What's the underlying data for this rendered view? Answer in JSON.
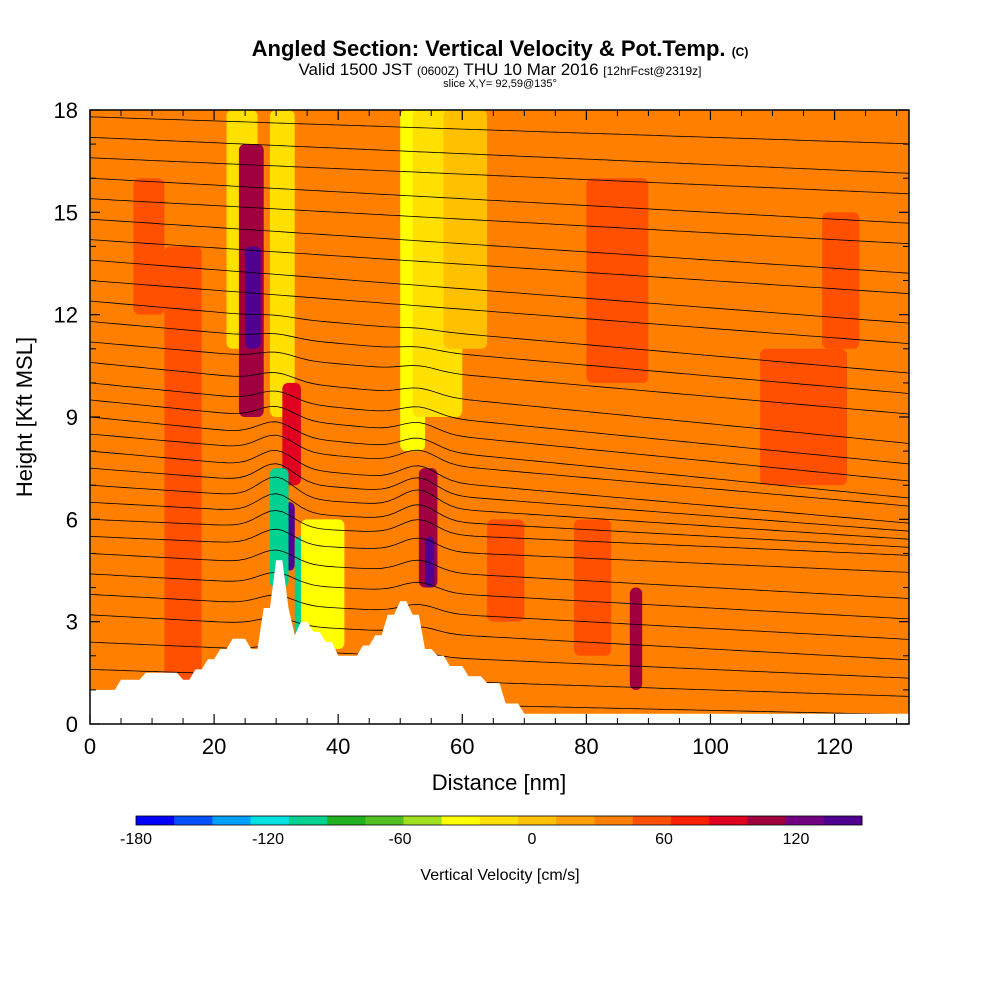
{
  "header": {
    "title_main": "Angled Section: Vertical Velocity & Pot.Temp.",
    "title_tag": "(C)",
    "valid_prefix": "Valid 1500 JST",
    "valid_utc": "(0600Z)",
    "valid_date": "THU 10 Mar 2016",
    "forecast_info": "[12hrFcst@2319z]",
    "slice_info": "slice X,Y= 92,59@135°"
  },
  "chart_data": {
    "type": "heatmap",
    "xlabel": "Distance [nm]",
    "ylabel": "Height [Kft MSL]",
    "xlim": [
      0,
      132
    ],
    "ylim": [
      0,
      18
    ],
    "x_ticks": [
      0,
      20,
      40,
      60,
      80,
      100,
      120
    ],
    "y_ticks": [
      0,
      3,
      6,
      9,
      12,
      15,
      18
    ],
    "colorbar": {
      "label": "Vertical Velocity [cm/s]",
      "min": -180,
      "max": 150,
      "step": 15,
      "tick_values": [
        -180,
        -120,
        -60,
        0,
        60,
        120
      ],
      "colors": [
        "#0000ff",
        "#0050ff",
        "#00a0ff",
        "#00e0e0",
        "#00d090",
        "#20b020",
        "#50c020",
        "#a0e020",
        "#ffff00",
        "#ffe000",
        "#ffc000",
        "#ffa000",
        "#ff8000",
        "#ff5000",
        "#ff2000",
        "#e00020",
        "#a00040",
        "#700080",
        "#500090"
      ]
    },
    "terrain_profile": [
      [
        0,
        1.0
      ],
      [
        1,
        1.0
      ],
      [
        2,
        1.0
      ],
      [
        3,
        1.0
      ],
      [
        4,
        1.0
      ],
      [
        5,
        1.3
      ],
      [
        6,
        1.3
      ],
      [
        7,
        1.3
      ],
      [
        8,
        1.3
      ],
      [
        9,
        1.5
      ],
      [
        10,
        1.5
      ],
      [
        11,
        1.5
      ],
      [
        12,
        1.5
      ],
      [
        13,
        1.5
      ],
      [
        14,
        1.5
      ],
      [
        15,
        1.3
      ],
      [
        16,
        1.3
      ],
      [
        17,
        1.6
      ],
      [
        18,
        1.6
      ],
      [
        19,
        1.9
      ],
      [
        20,
        1.9
      ],
      [
        21,
        2.2
      ],
      [
        22,
        2.2
      ],
      [
        23,
        2.5
      ],
      [
        24,
        2.5
      ],
      [
        25,
        2.5
      ],
      [
        26,
        2.2
      ],
      [
        27,
        2.2
      ],
      [
        28,
        3.4
      ],
      [
        29,
        3.4
      ],
      [
        30,
        4.8
      ],
      [
        31,
        4.8
      ],
      [
        32,
        3.4
      ],
      [
        33,
        2.6
      ],
      [
        34,
        3.0
      ],
      [
        35,
        3.0
      ],
      [
        36,
        2.7
      ],
      [
        37,
        2.7
      ],
      [
        38,
        2.4
      ],
      [
        39,
        2.4
      ],
      [
        40,
        2.0
      ],
      [
        41,
        2.0
      ],
      [
        42,
        2.0
      ],
      [
        43,
        2.0
      ],
      [
        44,
        2.3
      ],
      [
        45,
        2.3
      ],
      [
        46,
        2.6
      ],
      [
        47,
        2.6
      ],
      [
        48,
        3.2
      ],
      [
        49,
        3.2
      ],
      [
        50,
        3.6
      ],
      [
        51,
        3.6
      ],
      [
        52,
        3.2
      ],
      [
        53,
        3.2
      ],
      [
        54,
        2.2
      ],
      [
        55,
        2.2
      ],
      [
        56,
        2.0
      ],
      [
        57,
        2.0
      ],
      [
        58,
        1.7
      ],
      [
        59,
        1.7
      ],
      [
        60,
        1.7
      ],
      [
        61,
        1.4
      ],
      [
        62,
        1.4
      ],
      [
        63,
        1.4
      ],
      [
        64,
        1.2
      ],
      [
        65,
        1.2
      ],
      [
        66,
        1.2
      ],
      [
        67,
        0.6
      ],
      [
        68,
        0.6
      ],
      [
        69,
        0.6
      ],
      [
        70,
        0.3
      ],
      [
        132,
        0.3
      ]
    ],
    "cells": [
      {
        "x": [
          22,
          27
        ],
        "y": [
          11,
          18
        ],
        "w": -45
      },
      {
        "x": [
          24,
          28
        ],
        "y": [
          9,
          17
        ],
        "w": 60
      },
      {
        "x": [
          25,
          27.5
        ],
        "y": [
          11,
          14
        ],
        "w": 110
      },
      {
        "x": [
          29,
          33
        ],
        "y": [
          9,
          18
        ],
        "w": -40
      },
      {
        "x": [
          31,
          34
        ],
        "y": [
          7,
          10
        ],
        "w": 50
      },
      {
        "x": [
          31.5,
          33
        ],
        "y": [
          4.5,
          6.5
        ],
        "w": 110
      },
      {
        "x": [
          29,
          32
        ],
        "y": [
          4,
          7.5
        ],
        "w": -120
      },
      {
        "x": [
          33,
          37
        ],
        "y": [
          2.5,
          5.5
        ],
        "w": -110
      },
      {
        "x": [
          34,
          41
        ],
        "y": [
          2.2,
          6
        ],
        "w": -55
      },
      {
        "x": [
          50,
          54
        ],
        "y": [
          8,
          18
        ],
        "w": -60
      },
      {
        "x": [
          52,
          60
        ],
        "y": [
          9,
          18
        ],
        "w": -40
      },
      {
        "x": [
          57,
          64
        ],
        "y": [
          11,
          18
        ],
        "w": -30
      },
      {
        "x": [
          53,
          56
        ],
        "y": [
          4,
          7.5
        ],
        "w": 70
      },
      {
        "x": [
          54,
          55.5
        ],
        "y": [
          4,
          5.5
        ],
        "w": 115
      },
      {
        "x": [
          87,
          89
        ],
        "y": [
          1,
          4
        ],
        "w": 65
      },
      {
        "x": [
          12,
          18
        ],
        "y": [
          1,
          14
        ],
        "w": 15
      },
      {
        "x": [
          7,
          12
        ],
        "y": [
          12,
          16
        ],
        "w": 25
      },
      {
        "x": [
          64,
          70
        ],
        "y": [
          3,
          6
        ],
        "w": 20
      },
      {
        "x": [
          78,
          84
        ],
        "y": [
          2,
          6
        ],
        "w": 20
      },
      {
        "x": [
          80,
          90
        ],
        "y": [
          10,
          16
        ],
        "w": 20
      },
      {
        "x": [
          108,
          122
        ],
        "y": [
          7,
          11
        ],
        "w": 20
      },
      {
        "x": [
          118,
          124
        ],
        "y": [
          11,
          15
        ],
        "w": 15
      }
    ],
    "isentropes": [
      {
        "base": 0.8,
        "slope": -0.004
      },
      {
        "base": 1.6,
        "slope": -0.006
      },
      {
        "base": 2.4,
        "slope": -0.008
      },
      {
        "base": 3.2,
        "slope": -0.01
      },
      {
        "base": 3.8,
        "slope": -0.01
      },
      {
        "base": 4.4,
        "slope": -0.01
      },
      {
        "base": 5.0,
        "slope": -0.01
      },
      {
        "base": 5.5,
        "slope": -0.008
      },
      {
        "base": 6.0,
        "slope": -0.008
      },
      {
        "base": 6.5,
        "slope": -0.01
      },
      {
        "base": 7.0,
        "slope": -0.012
      },
      {
        "base": 7.5,
        "slope": -0.014
      },
      {
        "base": 8.0,
        "slope": -0.016
      },
      {
        "base": 8.5,
        "slope": -0.016
      },
      {
        "base": 9.0,
        "slope": -0.018
      },
      {
        "base": 9.5,
        "slope": -0.018
      },
      {
        "base": 10.0,
        "slope": -0.018
      },
      {
        "base": 10.6,
        "slope": -0.018
      },
      {
        "base": 11.2,
        "slope": -0.016
      },
      {
        "base": 11.8,
        "slope": -0.016
      },
      {
        "base": 12.4,
        "slope": -0.016
      },
      {
        "base": 13.0,
        "slope": -0.014
      },
      {
        "base": 13.6,
        "slope": -0.014
      },
      {
        "base": 14.2,
        "slope": -0.012
      },
      {
        "base": 14.8,
        "slope": -0.012
      },
      {
        "base": 15.4,
        "slope": -0.01
      },
      {
        "base": 16.0,
        "slope": -0.01
      },
      {
        "base": 16.6,
        "slope": -0.008
      },
      {
        "base": 17.2,
        "slope": -0.008
      },
      {
        "base": 17.8,
        "slope": -0.006
      }
    ]
  }
}
